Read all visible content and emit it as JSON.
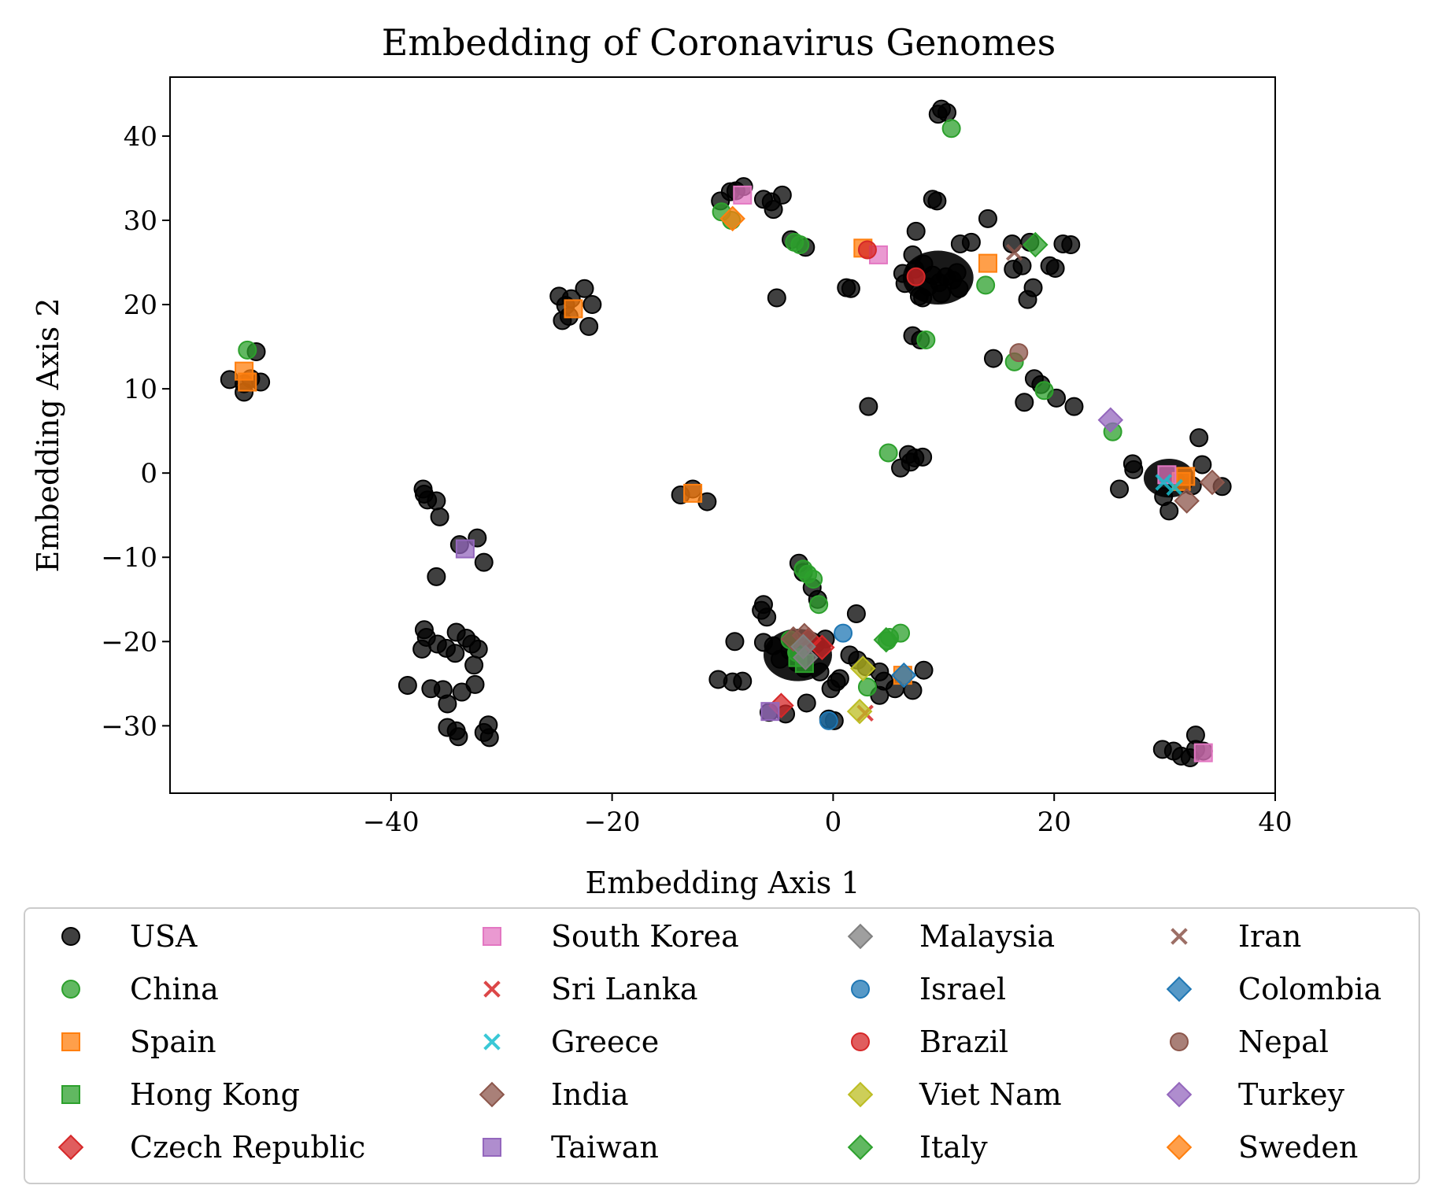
{
  "chart_data": {
    "type": "scatter",
    "title": "Embedding of Coronavirus Genomes",
    "xlabel": "Embedding Axis 1",
    "ylabel": "Embedding Axis 2",
    "xlim": [
      -60,
      40
    ],
    "ylim": [
      -38,
      47
    ],
    "xticks": [
      -40,
      -20,
      0,
      20,
      40
    ],
    "yticks": [
      -30,
      -20,
      -10,
      0,
      10,
      20,
      30,
      40
    ],
    "xtick_labels": [
      "−40",
      "−20",
      "0",
      "20",
      "40"
    ],
    "ytick_labels": [
      "−30",
      "−20",
      "−10",
      "0",
      "10",
      "20",
      "30",
      "40"
    ],
    "grid": false,
    "legend_position": "below plot, 4 columns",
    "series": [
      {
        "name": "USA",
        "marker": "circle",
        "color": "#000000",
        "points": [
          [
            9.8,
            43.2
          ],
          [
            10.3,
            42.8
          ],
          [
            9.5,
            42.6
          ],
          [
            9.0,
            32.5
          ],
          [
            9.4,
            32.3
          ],
          [
            14,
            30.2
          ],
          [
            7.5,
            28.7
          ],
          [
            11.5,
            27.2
          ],
          [
            12.5,
            27.4
          ],
          [
            16.2,
            27.2
          ],
          [
            17.8,
            27.4
          ],
          [
            20.8,
            27.2
          ],
          [
            21.5,
            27.1
          ],
          [
            19.6,
            24.6
          ],
          [
            20.1,
            24.3
          ],
          [
            17.1,
            24.6
          ],
          [
            16.3,
            24.2
          ],
          [
            18.1,
            22.0
          ],
          [
            17.6,
            20.6
          ],
          [
            8.2,
            24.8
          ],
          [
            9.0,
            23.5
          ],
          [
            10.2,
            23.3
          ],
          [
            8.6,
            22.1
          ],
          [
            9.6,
            22.6
          ],
          [
            10.8,
            22.9
          ],
          [
            11.2,
            23.8
          ],
          [
            7.4,
            24.2
          ],
          [
            6.5,
            22.5
          ],
          [
            7.8,
            21.0
          ],
          [
            8.1,
            20.8
          ],
          [
            9.8,
            21.3
          ],
          [
            11.4,
            21.9
          ],
          [
            6.3,
            23.7
          ],
          [
            7.2,
            25.9
          ],
          [
            1.2,
            22.0
          ],
          [
            1.6,
            21.9
          ],
          [
            -5.1,
            20.8
          ],
          [
            7.2,
            16.3
          ],
          [
            7.9,
            15.8
          ],
          [
            3.2,
            7.9
          ],
          [
            14.5,
            13.6
          ],
          [
            18.2,
            11.2
          ],
          [
            18.8,
            10.5
          ],
          [
            17.3,
            8.4
          ],
          [
            20.2,
            8.9
          ],
          [
            21.8,
            7.9
          ],
          [
            6.1,
            0.6
          ],
          [
            6.8,
            2.2
          ],
          [
            7.0,
            1.3
          ],
          [
            7.4,
            1.8
          ],
          [
            8.1,
            1.9
          ],
          [
            27.1,
            1.1
          ],
          [
            27.2,
            0.4
          ],
          [
            25.9,
            -1.9
          ],
          [
            29.9,
            -2.8
          ],
          [
            30.4,
            -4.5
          ],
          [
            33.1,
            4.2
          ],
          [
            33.4,
            1.0
          ],
          [
            35.2,
            -1.6
          ],
          [
            30.2,
            -0.2
          ],
          [
            31.0,
            -0.9
          ],
          [
            32.5,
            -1.5
          ],
          [
            -8.8,
            33.5
          ],
          [
            -9.3,
            33.4
          ],
          [
            -8.1,
            34.0
          ],
          [
            -10.2,
            32.3
          ],
          [
            -6.3,
            32.5
          ],
          [
            -5.6,
            32.2
          ],
          [
            -4.6,
            33.0
          ],
          [
            -5.4,
            31.3
          ],
          [
            -3.8,
            27.7
          ],
          [
            -2.5,
            26.8
          ],
          [
            -24.8,
            21.0
          ],
          [
            -24.2,
            19.9
          ],
          [
            -23.7,
            20.7
          ],
          [
            -22.5,
            21.9
          ],
          [
            -21.8,
            20.0
          ],
          [
            -22.1,
            17.4
          ],
          [
            -23.9,
            18.6
          ],
          [
            -24.5,
            18.1
          ],
          [
            -52.2,
            14.4
          ],
          [
            -54.6,
            11.1
          ],
          [
            -53.3,
            10.6
          ],
          [
            -52.7,
            11.2
          ],
          [
            -53.3,
            9.6
          ],
          [
            -51.8,
            10.8
          ],
          [
            -12.7,
            -1.9
          ],
          [
            -13.8,
            -2.6
          ],
          [
            -11.4,
            -3.4
          ],
          [
            -37.1,
            -1.9
          ],
          [
            -37.0,
            -2.5
          ],
          [
            -36.7,
            -3.2
          ],
          [
            -35.9,
            -3.3
          ],
          [
            -35.6,
            -5.2
          ],
          [
            -35.9,
            -12.3
          ],
          [
            -33.8,
            -8.5
          ],
          [
            -32.2,
            -7.7
          ],
          [
            -31.6,
            -10.6
          ],
          [
            -37.0,
            -18.6
          ],
          [
            -36.8,
            -19.5
          ],
          [
            -37.2,
            -20.9
          ],
          [
            -35.8,
            -20.3
          ],
          [
            -35.0,
            -20.8
          ],
          [
            -34.2,
            -21.4
          ],
          [
            -33.2,
            -19.6
          ],
          [
            -34.1,
            -18.9
          ],
          [
            -32.7,
            -20.3
          ],
          [
            -32.1,
            -20.9
          ],
          [
            -32.5,
            -22.8
          ],
          [
            -32.4,
            -25.1
          ],
          [
            -33.6,
            -26.0
          ],
          [
            -35.3,
            -25.7
          ],
          [
            -36.4,
            -25.6
          ],
          [
            -38.5,
            -25.2
          ],
          [
            -34.9,
            -27.4
          ],
          [
            -34.9,
            -30.2
          ],
          [
            -34.1,
            -30.6
          ],
          [
            -33.9,
            -31.3
          ],
          [
            -31.6,
            -30.8
          ],
          [
            -31.2,
            -29.9
          ],
          [
            -31.1,
            -31.4
          ],
          [
            -3.1,
            -10.7
          ],
          [
            -2.7,
            -11.8
          ],
          [
            -1.9,
            -13.6
          ],
          [
            -1.4,
            -15.0
          ],
          [
            -6.3,
            -15.6
          ],
          [
            -6.5,
            -16.3
          ],
          [
            -6.0,
            -17.1
          ],
          [
            -8.9,
            -20.0
          ],
          [
            -6.3,
            -20.1
          ],
          [
            -5.4,
            -20.5
          ],
          [
            -3.9,
            -21.1
          ],
          [
            -3.0,
            -21.5
          ],
          [
            -2.6,
            -20.6
          ],
          [
            -3.3,
            -22.5
          ],
          [
            -2.6,
            -23.2
          ],
          [
            -4.8,
            -22.1
          ],
          [
            -1.6,
            -20.3
          ],
          [
            -0.7,
            -19.7
          ],
          [
            -1.2,
            -23.6
          ],
          [
            0.3,
            -24.8
          ],
          [
            0.6,
            -24.4
          ],
          [
            -0.2,
            -25.6
          ],
          [
            -10.4,
            -24.5
          ],
          [
            -9.1,
            -24.8
          ],
          [
            -8.2,
            -24.7
          ],
          [
            -2.4,
            -27.3
          ],
          [
            -4.3,
            -28.6
          ],
          [
            -5.8,
            -28.4
          ],
          [
            2.1,
            -16.7
          ],
          [
            1.5,
            -21.6
          ],
          [
            2.2,
            -22.2
          ],
          [
            3.0,
            -23.0
          ],
          [
            4.2,
            -23.6
          ],
          [
            4.6,
            -24.7
          ],
          [
            5.6,
            -25.6
          ],
          [
            4.2,
            -26.4
          ],
          [
            7.2,
            -25.8
          ],
          [
            8.2,
            -23.4
          ],
          [
            0.1,
            -29.4
          ],
          [
            -0.4,
            -29.2
          ],
          [
            29.8,
            -32.8
          ],
          [
            30.8,
            -33.0
          ],
          [
            31.5,
            -33.6
          ],
          [
            32.3,
            -33.8
          ],
          [
            32.8,
            -32.8
          ],
          [
            32.8,
            -31.1
          ],
          [
            33.5,
            -33.0
          ]
        ],
        "blobs": [
          [
            9.5,
            23.2,
            3.2
          ],
          [
            30.4,
            -0.6,
            2.3
          ],
          [
            -3.2,
            -21.6,
            3.1
          ]
        ]
      },
      {
        "name": "China",
        "marker": "circle",
        "color": "#2ca02c",
        "points": [
          [
            10.7,
            40.9
          ],
          [
            -10.1,
            31.0
          ],
          [
            -9.2,
            30.0
          ],
          [
            -3.5,
            27.4
          ],
          [
            -3.0,
            27.1
          ],
          [
            13.8,
            22.3
          ],
          [
            8.4,
            15.8
          ],
          [
            16.4,
            13.2
          ],
          [
            19.1,
            9.8
          ],
          [
            5.0,
            2.4
          ],
          [
            25.3,
            4.9
          ],
          [
            -53.0,
            14.6
          ],
          [
            -2.7,
            -11.4
          ],
          [
            -2.3,
            -12.0
          ],
          [
            -1.8,
            -12.6
          ],
          [
            -1.3,
            -15.6
          ],
          [
            5.1,
            -19.5
          ],
          [
            4.9,
            -19.9
          ],
          [
            6.1,
            -19.0
          ],
          [
            3.1,
            -25.4
          ],
          [
            -3.9,
            -19.8
          ],
          [
            -3.3,
            -21.3
          ]
        ]
      },
      {
        "name": "Spain",
        "marker": "square",
        "color": "#ff7f0e",
        "points": [
          [
            2.7,
            26.7
          ],
          [
            14.0,
            24.9
          ],
          [
            -23.5,
            19.5
          ],
          [
            -53.3,
            12.1
          ],
          [
            -53.0,
            10.8
          ],
          [
            -12.7,
            -2.4
          ],
          [
            31.9,
            -0.4
          ],
          [
            31.5,
            -1.0
          ],
          [
            6.3,
            -24.0
          ]
        ]
      },
      {
        "name": "Hong Kong",
        "marker": "square",
        "color": "#2ca02c",
        "points": [
          [
            -3.2,
            -21.9
          ],
          [
            -2.6,
            -22.6
          ]
        ]
      },
      {
        "name": "Czech Republic",
        "marker": "diamond",
        "color": "#d62728",
        "points": [
          [
            -1.0,
            -20.7
          ],
          [
            -2.2,
            -19.8
          ],
          [
            -4.7,
            -27.6
          ]
        ]
      },
      {
        "name": "South Korea",
        "marker": "square",
        "color": "#e377c2",
        "points": [
          [
            -8.2,
            33.0
          ],
          [
            4.1,
            25.9
          ],
          [
            30.2,
            -0.2
          ],
          [
            33.5,
            -33.2
          ]
        ]
      },
      {
        "name": "Sri Lanka",
        "marker": "x",
        "color": "#d62728",
        "points": [
          [
            2.9,
            -28.5
          ]
        ]
      },
      {
        "name": "Greece",
        "marker": "x",
        "color": "#17becf",
        "points": [
          [
            29.9,
            -1.1
          ],
          [
            30.9,
            -1.7
          ]
        ]
      },
      {
        "name": "India",
        "marker": "diamond",
        "color": "#8c564b",
        "points": [
          [
            -3.6,
            -19.7
          ],
          [
            -2.6,
            -19.3
          ],
          [
            32.0,
            -3.3
          ],
          [
            34.3,
            -1.1
          ]
        ]
      },
      {
        "name": "Taiwan",
        "marker": "square",
        "color": "#9467bd",
        "points": [
          [
            -33.3,
            -9.0
          ],
          [
            -5.7,
            -28.3
          ]
        ]
      },
      {
        "name": "Malaysia",
        "marker": "diamond",
        "color": "#7f7f7f",
        "points": [
          [
            -2.7,
            -20.6
          ],
          [
            -2.5,
            -21.9
          ]
        ]
      },
      {
        "name": "Israel",
        "marker": "circle",
        "color": "#1f77b4",
        "points": [
          [
            0.9,
            -19.0
          ],
          [
            -0.4,
            -29.4
          ]
        ]
      },
      {
        "name": "Brazil",
        "marker": "circle",
        "color": "#d62728",
        "points": [
          [
            3.1,
            26.5
          ],
          [
            7.5,
            23.3
          ]
        ]
      },
      {
        "name": "Viet Nam",
        "marker": "diamond",
        "color": "#bcbd22",
        "points": [
          [
            2.7,
            -23.2
          ],
          [
            2.4,
            -28.3
          ]
        ]
      },
      {
        "name": "Italy",
        "marker": "diamond",
        "color": "#2ca02c",
        "points": [
          [
            18.3,
            27.1
          ],
          [
            4.8,
            -19.8
          ]
        ]
      },
      {
        "name": "Iran",
        "marker": "x",
        "color": "#8c564b",
        "points": [
          [
            16.4,
            26.2
          ]
        ]
      },
      {
        "name": "Colombia",
        "marker": "diamond",
        "color": "#1f77b4",
        "points": [
          [
            6.4,
            -24.0
          ]
        ]
      },
      {
        "name": "Nepal",
        "marker": "circle",
        "color": "#8c564b",
        "points": [
          [
            16.8,
            14.3
          ]
        ]
      },
      {
        "name": "Turkey",
        "marker": "diamond",
        "color": "#9467bd",
        "points": [
          [
            25.1,
            6.3
          ]
        ]
      },
      {
        "name": "Sweden",
        "marker": "diamond",
        "color": "#ff7f0e",
        "points": [
          [
            -9.1,
            30.2
          ]
        ]
      }
    ]
  }
}
